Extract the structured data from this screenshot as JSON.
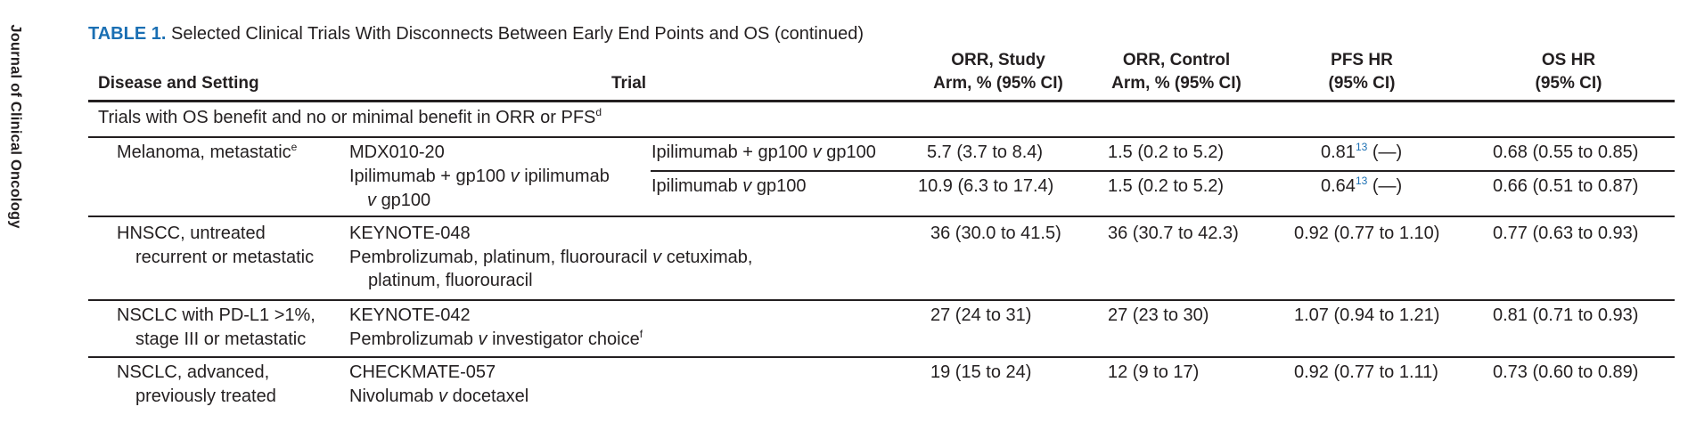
{
  "journal_name": "Journal of Clinical Oncology",
  "caption": {
    "label": "TABLE 1.",
    "text": "Selected Clinical Trials With Disconnects Between Early End Points and OS (continued)"
  },
  "headers": {
    "disease": "Disease and Setting",
    "trial": "Trial",
    "orr_study_line1": "ORR, Study",
    "orr_study_line2": "Arm, % (95% CI)",
    "orr_control_line1": "ORR, Control",
    "orr_control_line2": "Arm, % (95% CI)",
    "pfs_line1": "PFS HR",
    "pfs_line2": "(95% CI)",
    "os_line1": "OS HR",
    "os_line2": "(95% CI)"
  },
  "section": {
    "text": "Trials with OS benefit and no or minimal benefit in ORR or PFS",
    "sup": "d"
  },
  "rows": {
    "melanoma": {
      "disease": "Melanoma, metastatic",
      "disease_sup": "e",
      "trial_name": "MDX010-20",
      "arms_a": "Ipilimumab + gp100",
      "arms_v": "v",
      "arms_b": "ipilimumab",
      "arms_c": "gp100",
      "sub1": {
        "comp_a": "Ipilimumab + gp100",
        "comp_v": "v",
        "comp_b": "gp100",
        "orr_study": "5.7 (3.7 to 8.4)",
        "orr_control": "1.5 (0.2 to 5.2)",
        "pfs": "0.81",
        "pfs_ref": "13",
        "pfs_ci": "(—)",
        "os": "0.68 (0.55 to 0.85)"
      },
      "sub2": {
        "comp_a": "Ipilimumab",
        "comp_v": "v",
        "comp_b": "gp100",
        "orr_study": "10.9 (6.3 to 17.4)",
        "orr_control": "1.5 (0.2 to 5.2)",
        "pfs": "0.64",
        "pfs_ref": "13",
        "pfs_ci": "(—)",
        "os": "0.66 (0.51 to 0.87)"
      }
    },
    "hnscc": {
      "disease_line1": "HNSCC, untreated",
      "disease_line2": "recurrent or metastatic",
      "trial_name": "KEYNOTE-048",
      "arms_a": "Pembrolizumab, platinum, fluorouracil",
      "arms_v": "v",
      "arms_b": "cetuximab,",
      "arms_c": "platinum, fluorouracil",
      "orr_study": "36 (30.0 to 41.5)",
      "orr_control": "36 (30.7 to 42.3)",
      "pfs": "0.92 (0.77 to 1.10)",
      "os": "0.77 (0.63 to 0.93)"
    },
    "nsclc_pdl1": {
      "disease_line1": "NSCLC with PD-L1 >1%,",
      "disease_line2": "stage III or metastatic",
      "trial_name": "KEYNOTE-042",
      "arms_a": "Pembrolizumab",
      "arms_v": "v",
      "arms_b": "investigator choice",
      "arms_sup": "f",
      "orr_study": "27 (24 to 31)",
      "orr_control": "27 (23 to 30)",
      "pfs": "1.07 (0.94 to 1.21)",
      "os": "0.81 (0.71 to 0.93)"
    },
    "nsclc_adv": {
      "disease_line1": "NSCLC, advanced,",
      "disease_line2": "previously treated",
      "trial_name": "CHECKMATE-057",
      "arms_a": "Nivolumab",
      "arms_v": "v",
      "arms_b": "docetaxel",
      "orr_study": "19 (15 to 24)",
      "orr_control": "12 (9 to 17)",
      "pfs": "0.92 (0.77 to 1.11)",
      "os": "0.73 (0.60 to 0.89)"
    }
  }
}
